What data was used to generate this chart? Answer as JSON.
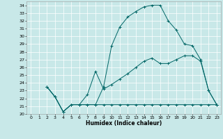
{
  "xlabel": "Humidex (Indice chaleur)",
  "xlim": [
    -0.5,
    23.5
  ],
  "ylim": [
    20,
    34.5
  ],
  "yticks": [
    20,
    21,
    22,
    23,
    24,
    25,
    26,
    27,
    28,
    29,
    30,
    31,
    32,
    33,
    34
  ],
  "xticks": [
    0,
    1,
    2,
    3,
    4,
    5,
    6,
    7,
    8,
    9,
    10,
    11,
    12,
    13,
    14,
    15,
    16,
    17,
    18,
    19,
    20,
    21,
    22,
    23
  ],
  "bg_color": "#c8e8e8",
  "grid_color": "#ffffff",
  "line_color": "#006666",
  "line1_x": [
    2,
    3,
    4,
    5,
    6,
    7,
    8,
    9,
    10,
    11,
    12,
    13,
    14,
    15,
    16,
    17,
    18,
    19,
    20,
    21,
    22,
    23
  ],
  "line1_y": [
    23.5,
    22.2,
    20.3,
    21.2,
    21.2,
    21.2,
    21.2,
    21.2,
    21.2,
    21.2,
    21.2,
    21.2,
    21.2,
    21.2,
    21.2,
    21.2,
    21.2,
    21.2,
    21.2,
    21.2,
    21.2,
    21.2
  ],
  "line2_x": [
    2,
    3,
    4,
    5,
    6,
    7,
    8,
    9,
    10,
    11,
    12,
    13,
    14,
    15,
    16,
    17,
    18,
    19,
    20,
    21,
    22,
    23
  ],
  "line2_y": [
    23.5,
    22.2,
    20.3,
    21.2,
    21.2,
    22.5,
    25.5,
    23.2,
    23.8,
    24.5,
    25.2,
    26.0,
    26.8,
    27.2,
    26.5,
    26.5,
    27.0,
    27.5,
    27.5,
    26.8,
    23.0,
    21.2
  ],
  "line3_x": [
    2,
    3,
    4,
    5,
    6,
    7,
    8,
    9,
    10,
    11,
    12,
    13,
    14,
    15,
    16,
    17,
    18,
    19,
    20,
    21,
    22,
    23
  ],
  "line3_y": [
    23.5,
    22.2,
    20.3,
    21.2,
    21.2,
    21.2,
    21.2,
    23.5,
    28.8,
    31.2,
    32.5,
    33.2,
    33.8,
    34.0,
    34.0,
    32.0,
    30.8,
    29.0,
    28.8,
    27.0,
    23.0,
    21.2
  ],
  "tick_fontsize": 4.5,
  "xlabel_fontsize": 5.5,
  "linewidth": 0.7,
  "markersize": 2.5,
  "markeredgewidth": 0.7
}
